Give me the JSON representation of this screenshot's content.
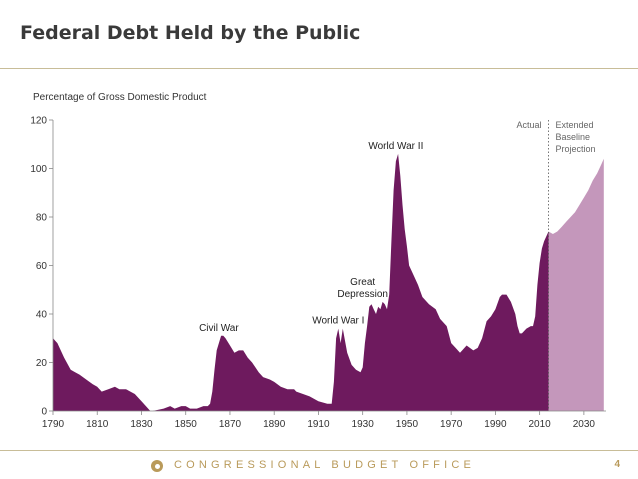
{
  "slide": {
    "title": "Federal Debt Held by the Public",
    "footer_org": "CONGRESSIONAL BUDGET OFFICE",
    "page_number": "4"
  },
  "chart_data": {
    "type": "area",
    "ylabel": "Percentage of Gross Domestic Product",
    "ylim": [
      0,
      120
    ],
    "xlim": [
      1790,
      2040
    ],
    "yticks": [
      0,
      20,
      40,
      60,
      80,
      100,
      120
    ],
    "xticks": [
      1790,
      1810,
      1830,
      1850,
      1870,
      1890,
      1910,
      1930,
      1950,
      1970,
      1990,
      2010,
      2030
    ],
    "colors": {
      "actual": "#6e1a5e",
      "projection": "#c497bb"
    },
    "series": [
      {
        "name": "Actual",
        "x": [
          1790,
          1791,
          1792,
          1795,
          1798,
          1800,
          1802,
          1805,
          1808,
          1810,
          1812,
          1815,
          1818,
          1820,
          1823,
          1825,
          1827,
          1830,
          1832,
          1834,
          1835,
          1840,
          1843,
          1845,
          1848,
          1850,
          1852,
          1855,
          1858,
          1860,
          1861,
          1862,
          1863,
          1864,
          1866,
          1867,
          1868,
          1870,
          1872,
          1874,
          1876,
          1878,
          1880,
          1883,
          1885,
          1888,
          1890,
          1893,
          1896,
          1899,
          1900,
          1903,
          1906,
          1910,
          1914,
          1916,
          1917,
          1918,
          1919,
          1920,
          1921,
          1922,
          1923,
          1925,
          1927,
          1929,
          1930,
          1931,
          1932,
          1933,
          1934,
          1935,
          1936,
          1937,
          1938,
          1939,
          1940,
          1941,
          1942,
          1943,
          1944,
          1945,
          1946,
          1947,
          1948,
          1949,
          1950,
          1951,
          1952,
          1953,
          1955,
          1957,
          1960,
          1963,
          1965,
          1968,
          1970,
          1972,
          1974,
          1975,
          1977,
          1980,
          1982,
          1984,
          1986,
          1988,
          1990,
          1992,
          1993,
          1995,
          1997,
          1999,
          2000,
          2001,
          2002,
          2004,
          2006,
          2007,
          2008,
          2009,
          2010,
          2011,
          2012,
          2013,
          2014
        ],
        "y": [
          30,
          29,
          28,
          22,
          17,
          16,
          15,
          13,
          11,
          10,
          8,
          9,
          10,
          9,
          9,
          8,
          7,
          4,
          2,
          0,
          0,
          1,
          2,
          1,
          2,
          2,
          1,
          1,
          2,
          2,
          3,
          8,
          17,
          25,
          31,
          31,
          30,
          27,
          24,
          25,
          25,
          22,
          20,
          16,
          14,
          13,
          12,
          10,
          9,
          9,
          8,
          7,
          6,
          4,
          3,
          3,
          12,
          30,
          34,
          28,
          34,
          29,
          24,
          19,
          17,
          16,
          18,
          28,
          35,
          43,
          44,
          42,
          40,
          43,
          42,
          45,
          44,
          42,
          48,
          70,
          91,
          103,
          106,
          97,
          85,
          75,
          68,
          60,
          58,
          56,
          52,
          47,
          44,
          42,
          38,
          35,
          28,
          26,
          24,
          25,
          27,
          25,
          26,
          30,
          37,
          39,
          42,
          47,
          48,
          48,
          45,
          40,
          35,
          32,
          32,
          34,
          35,
          35,
          39,
          52,
          61,
          67,
          70,
          72,
          74
        ]
      },
      {
        "name": "Extended Baseline Projection",
        "x": [
          2014,
          2016,
          2018,
          2020,
          2022,
          2024,
          2026,
          2028,
          2030,
          2032,
          2034,
          2036,
          2038,
          2039
        ],
        "y": [
          74,
          73,
          74,
          76,
          78,
          80,
          82,
          85,
          88,
          91,
          95,
          98,
          102,
          104
        ]
      }
    ],
    "divider_x": 2014,
    "annotations": [
      {
        "text": "Civil War",
        "x": 1865,
        "y": 33
      },
      {
        "text": "World War I",
        "x": 1919,
        "y": 36
      },
      {
        "text": "Great",
        "x": 1930,
        "y": 52
      },
      {
        "text": "Depression",
        "x": 1930,
        "y": 47
      },
      {
        "text": "World War II",
        "x": 1945,
        "y": 108
      }
    ],
    "region_labels": {
      "actual": "Actual",
      "projection": [
        "Extended",
        "Baseline",
        "Projection"
      ]
    }
  }
}
